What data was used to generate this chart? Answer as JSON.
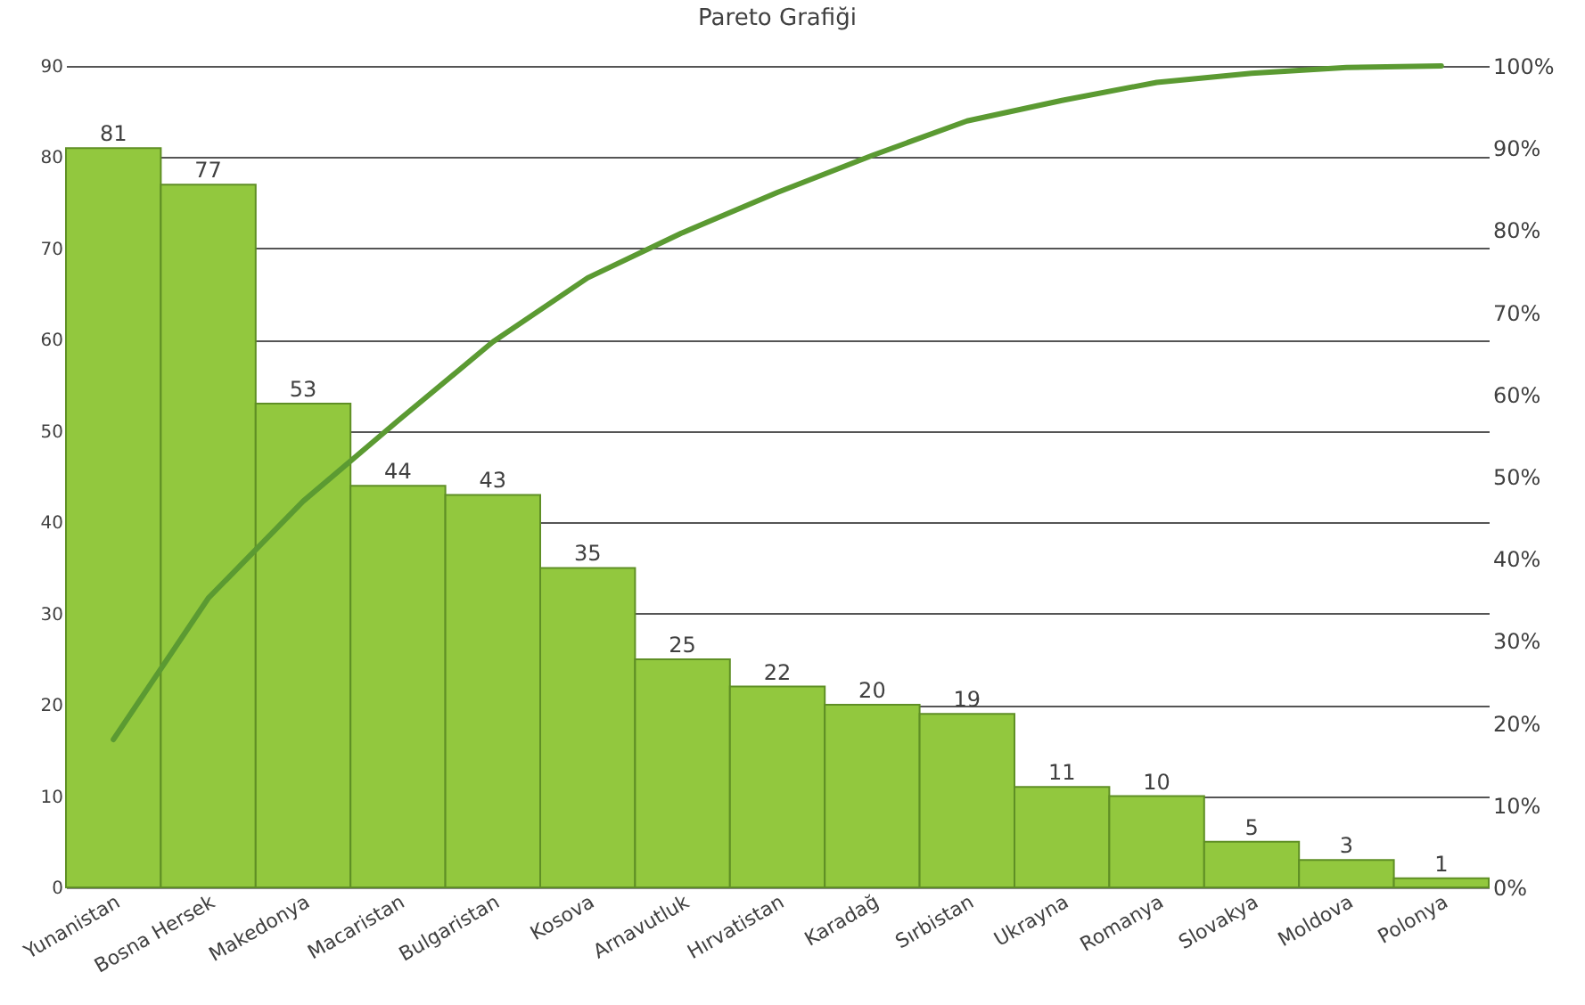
{
  "chart_data": {
    "type": "bar",
    "title": "Pareto Grafiği",
    "categories": [
      "Yunanistan",
      "Bosna Hersek",
      "Makedonya",
      "Macaristan",
      "Bulgaristan",
      "Kosova",
      "Arnavutluk",
      "Hırvatistan",
      "Karadağ",
      "Sırbistan",
      "Ukrayna",
      "Romanya",
      "Slovakya",
      "Moldova",
      "Polonya"
    ],
    "series": [
      {
        "color": "#92c83e",
        "values": [
          81,
          77,
          53,
          44,
          43,
          35,
          25,
          22,
          20,
          19,
          11,
          10,
          5,
          3,
          1
        ],
        "value_labels": [
          "81",
          "77",
          "53",
          "44",
          "43",
          "35",
          "25",
          "22",
          "20",
          "19",
          "11",
          "10",
          "5",
          "3",
          "1"
        ]
      },
      {
        "type": "line",
        "axis": "y2",
        "color": "#5b9a32",
        "values": [
          18.0,
          35.2,
          47.0,
          56.8,
          66.4,
          74.2,
          79.7,
          84.6,
          89.1,
          93.3,
          95.8,
          98.0,
          99.1,
          99.8,
          100
        ]
      }
    ],
    "grid": "y",
    "marker": "none",
    "line_style": "solid",
    "ylim": [
      0,
      90
    ],
    "yticks": [
      0,
      10,
      20,
      30,
      40,
      50,
      60,
      70,
      80,
      90
    ],
    "y2lim": [
      0,
      100
    ],
    "y2ticks": [
      {
        "value": 0,
        "label": "0%"
      },
      {
        "value": 10,
        "label": "10%"
      },
      {
        "value": 20,
        "label": "20%"
      },
      {
        "value": 30,
        "label": "30%"
      },
      {
        "value": 40,
        "label": "40%"
      },
      {
        "value": 50,
        "label": "50%"
      },
      {
        "value": 60,
        "label": "60%"
      },
      {
        "value": 70,
        "label": "70%"
      },
      {
        "value": 80,
        "label": "80%"
      },
      {
        "value": 90,
        "label": "90%"
      },
      {
        "value": 100,
        "label": "100%"
      }
    ]
  }
}
